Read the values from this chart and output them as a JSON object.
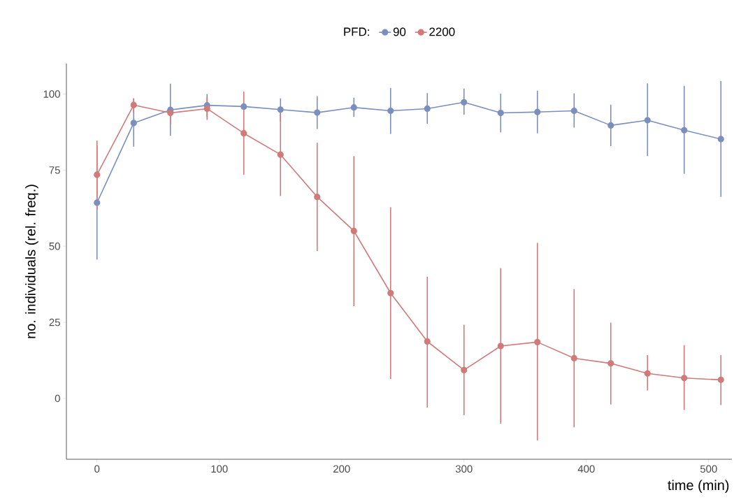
{
  "chart_data": {
    "type": "line",
    "xlabel": "time (min)",
    "ylabel": "no. individuals (rel. freq.)",
    "legend_title": "PFD:",
    "x": [
      0,
      30,
      60,
      90,
      120,
      150,
      180,
      210,
      240,
      270,
      300,
      330,
      360,
      390,
      420,
      450,
      480,
      510
    ],
    "series": [
      {
        "name": "90",
        "color": "#7b8fbf",
        "values": [
          64.3,
          90.5,
          94.8,
          96.3,
          95.9,
          94.9,
          93.9,
          95.6,
          94.5,
          95.2,
          97.3,
          93.8,
          94.1,
          94.5,
          89.7,
          91.4,
          88.1,
          85.2
        ],
        "errors": [
          [
            45.6,
            83
          ],
          [
            82.7,
            98.5
          ],
          [
            86.3,
            103.4
          ],
          [
            92.5,
            100
          ],
          null,
          [
            91,
            98.6
          ],
          [
            88.5,
            99.3
          ],
          [
            92.5,
            98.8
          ],
          [
            86.9,
            102
          ],
          [
            90.2,
            100.3
          ],
          [
            93.2,
            101.8
          ],
          [
            87.4,
            100.1
          ],
          [
            87.1,
            101.1
          ],
          [
            89,
            100.2
          ],
          [
            82.9,
            96.5
          ],
          [
            79.6,
            103.5
          ],
          [
            73.8,
            102.7
          ],
          [
            66.2,
            104.3
          ]
        ]
      },
      {
        "name": "2200",
        "color": "#d07a7a",
        "values": [
          73.5,
          96.4,
          93.8,
          95.2,
          87.1,
          80.1,
          66.2,
          55,
          34.6,
          18.7,
          9.3,
          17.2,
          18.5,
          13.2,
          11.5,
          8.2,
          6.7,
          6.1
        ],
        "errors": [
          [
            62,
            84.7
          ],
          [
            94,
            98.6
          ],
          [
            90,
            95.5
          ],
          [
            91.5,
            99
          ],
          [
            73.5,
            100.8
          ],
          [
            66.5,
            94
          ],
          [
            48.4,
            84
          ],
          [
            30.3,
            79.6
          ],
          [
            6.4,
            62.8
          ],
          [
            -3,
            40
          ],
          [
            -5.5,
            24.2
          ],
          [
            -8.3,
            42.8
          ],
          [
            -13.8,
            51.1
          ],
          [
            -9.5,
            35.9
          ],
          [
            -2,
            24.9
          ],
          [
            2.6,
            14.2
          ],
          [
            -3.8,
            17.5
          ],
          [
            -2.2,
            14.2
          ]
        ]
      }
    ],
    "xlim": [
      -25,
      519
    ],
    "ylim": [
      -20,
      110
    ],
    "xticks": [
      0,
      100,
      200,
      300,
      400,
      500
    ],
    "yticks": [
      0,
      25,
      50,
      75,
      100
    ],
    "grid": false,
    "legend": "top",
    "marker": "circle",
    "line_style": "solid"
  }
}
